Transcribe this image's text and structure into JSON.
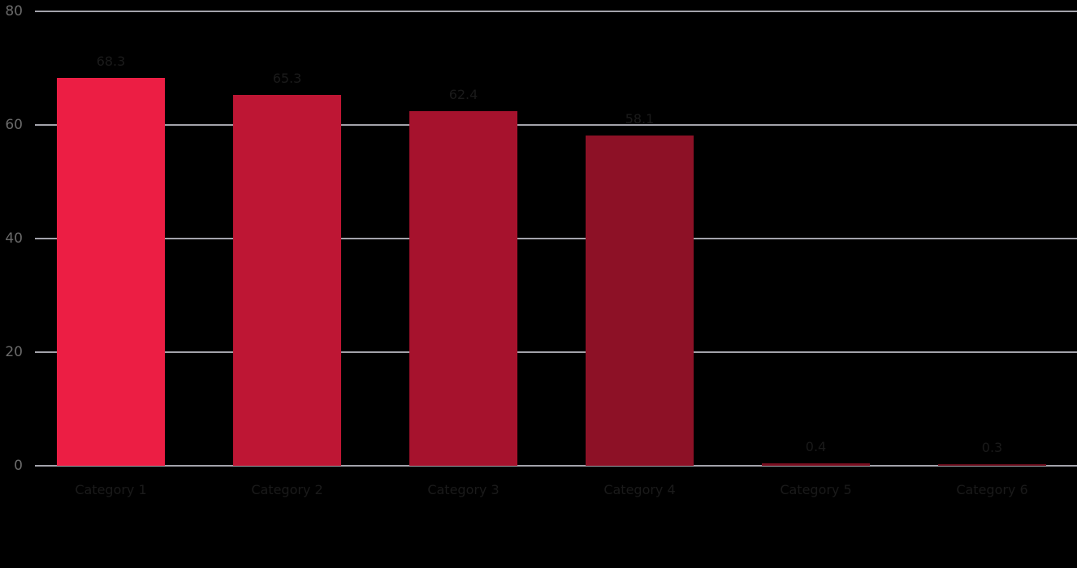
{
  "chart_data": {
    "type": "bar",
    "title": "",
    "xlabel": "",
    "ylabel": "",
    "categories": [
      "Category 1",
      "Category 2",
      "Category 3",
      "Category 4",
      "Category 5",
      "Category 6"
    ],
    "values": [
      68.3,
      65.3,
      62.4,
      58.1,
      0.4,
      0.3
    ],
    "data_labels": [
      "68.3",
      "65.3",
      "62.4",
      "58.1",
      "0.4",
      "0.3"
    ],
    "bar_colors": [
      "#EC1E44",
      "#BE1634",
      "#A6122D",
      "#8D1126",
      "#7A0E20",
      "#670B1A"
    ],
    "ylim": [
      0,
      80
    ],
    "yticks": [
      80,
      60,
      40,
      20,
      0
    ],
    "grid": true,
    "legend": false,
    "background_color": "#000000",
    "gridline_color": "#A3A3AB",
    "ytick_label_color": "#6A6A6A",
    "data_label_color": "#1A1A1A",
    "xtick_label_color": "#1A1A1A"
  }
}
